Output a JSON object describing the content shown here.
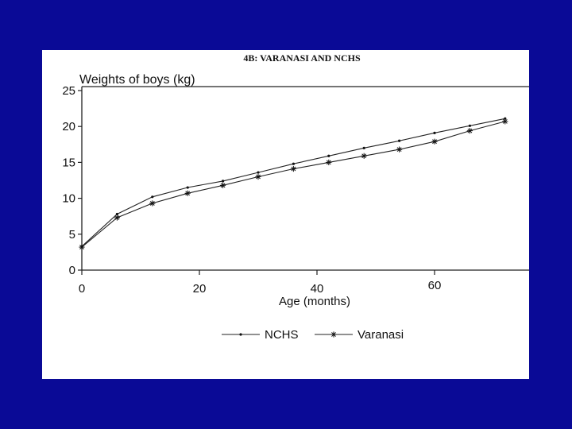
{
  "chart_data": {
    "type": "line",
    "title": "4B: VARANASI AND NCHS",
    "ylabel": "Weights of boys (kg)",
    "xlabel": "Age (months)",
    "xlim": [
      0,
      76
    ],
    "ylim": [
      0,
      25
    ],
    "xticks": [
      0,
      20,
      40,
      60
    ],
    "yticks": [
      0,
      5,
      10,
      15,
      20,
      25
    ],
    "grid": false,
    "legend": "bottom",
    "series": [
      {
        "name": "NCHS",
        "marker": "dot",
        "x": [
          0,
          6,
          12,
          18,
          24,
          30,
          36,
          42,
          48,
          54,
          60,
          66,
          72
        ],
        "y": [
          3.3,
          7.8,
          10.2,
          11.5,
          12.4,
          13.6,
          14.8,
          15.9,
          17.0,
          18.0,
          19.1,
          20.1,
          21.1
        ]
      },
      {
        "name": "Varanasi",
        "marker": "asterisk",
        "x": [
          0,
          6,
          12,
          18,
          24,
          30,
          36,
          42,
          48,
          54,
          60,
          66,
          72
        ],
        "y": [
          3.2,
          7.3,
          9.3,
          10.7,
          11.8,
          13.0,
          14.1,
          15.0,
          15.9,
          16.8,
          17.9,
          19.4,
          20.7
        ]
      }
    ]
  }
}
